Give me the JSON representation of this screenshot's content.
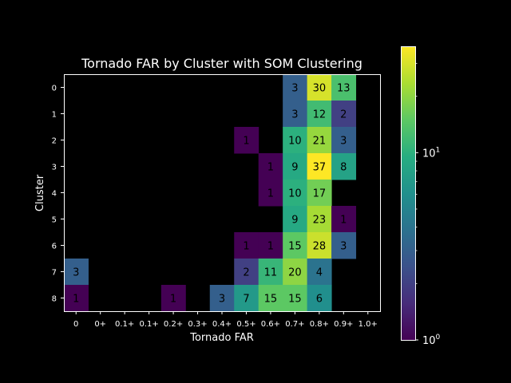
{
  "chart_data": {
    "type": "heatmap",
    "title": "Tornado FAR by Cluster with SOM Clustering",
    "xlabel": "Tornado FAR",
    "ylabel": "Cluster",
    "x_tick_labels": [
      "0",
      "0+",
      "0.1+",
      "0.1+",
      "0.2+",
      "0.3+",
      "0.4+",
      "0.5+",
      "0.6+",
      "0.7+",
      "0.8+",
      "0.9+",
      "1.0+"
    ],
    "y_tick_labels": [
      "0",
      "1",
      "2",
      "3",
      "4",
      "5",
      "6",
      "7",
      "8"
    ],
    "color_scale": "log",
    "colormap": "viridis",
    "vmin": 1,
    "vmax": 37,
    "colorbar_ticks": [
      {
        "value": 1,
        "label": "10",
        "exponent": "0"
      },
      {
        "value": 10,
        "label": "10",
        "exponent": "1"
      }
    ],
    "cells": [
      {
        "cluster": 0,
        "col": 9,
        "value": 3
      },
      {
        "cluster": 0,
        "col": 10,
        "value": 30
      },
      {
        "cluster": 0,
        "col": 11,
        "value": 13
      },
      {
        "cluster": 1,
        "col": 9,
        "value": 3
      },
      {
        "cluster": 1,
        "col": 10,
        "value": 12
      },
      {
        "cluster": 1,
        "col": 11,
        "value": 2
      },
      {
        "cluster": 2,
        "col": 7,
        "value": 1
      },
      {
        "cluster": 2,
        "col": 9,
        "value": 10
      },
      {
        "cluster": 2,
        "col": 10,
        "value": 21
      },
      {
        "cluster": 2,
        "col": 11,
        "value": 3
      },
      {
        "cluster": 3,
        "col": 8,
        "value": 1
      },
      {
        "cluster": 3,
        "col": 9,
        "value": 9
      },
      {
        "cluster": 3,
        "col": 10,
        "value": 37
      },
      {
        "cluster": 3,
        "col": 11,
        "value": 8
      },
      {
        "cluster": 4,
        "col": 8,
        "value": 1
      },
      {
        "cluster": 4,
        "col": 9,
        "value": 10
      },
      {
        "cluster": 4,
        "col": 10,
        "value": 17
      },
      {
        "cluster": 5,
        "col": 9,
        "value": 9
      },
      {
        "cluster": 5,
        "col": 10,
        "value": 23
      },
      {
        "cluster": 5,
        "col": 11,
        "value": 1
      },
      {
        "cluster": 6,
        "col": 7,
        "value": 1
      },
      {
        "cluster": 6,
        "col": 8,
        "value": 1
      },
      {
        "cluster": 6,
        "col": 9,
        "value": 15
      },
      {
        "cluster": 6,
        "col": 10,
        "value": 28
      },
      {
        "cluster": 6,
        "col": 11,
        "value": 3
      },
      {
        "cluster": 7,
        "col": 0,
        "value": 3
      },
      {
        "cluster": 7,
        "col": 7,
        "value": 2
      },
      {
        "cluster": 7,
        "col": 8,
        "value": 11
      },
      {
        "cluster": 7,
        "col": 9,
        "value": 20
      },
      {
        "cluster": 7,
        "col": 10,
        "value": 4
      },
      {
        "cluster": 8,
        "col": 0,
        "value": 1
      },
      {
        "cluster": 8,
        "col": 4,
        "value": 1
      },
      {
        "cluster": 8,
        "col": 6,
        "value": 3
      },
      {
        "cluster": 8,
        "col": 7,
        "value": 7
      },
      {
        "cluster": 8,
        "col": 8,
        "value": 15
      },
      {
        "cluster": 8,
        "col": 9,
        "value": 15
      },
      {
        "cluster": 8,
        "col": 10,
        "value": 6
      }
    ]
  }
}
